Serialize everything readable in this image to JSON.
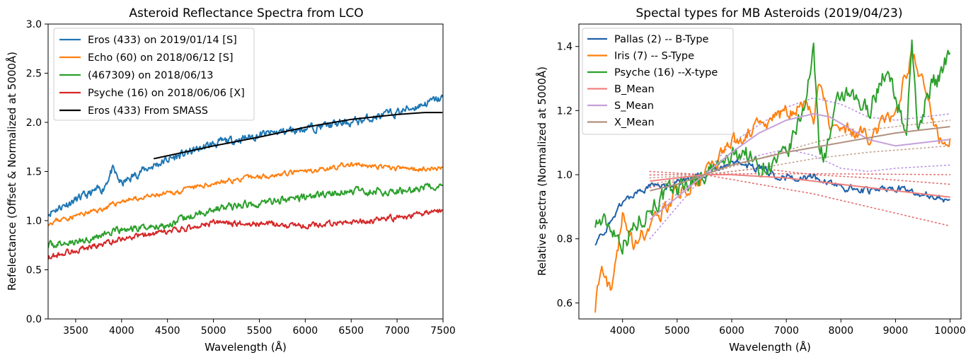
{
  "chart_data": [
    {
      "type": "line",
      "title": "Asteroid Reflectance Spectra from LCO",
      "xlabel": "Wavelength (Å)",
      "ylabel": "Refelectance (Offset & Normalized at 5000Å)",
      "xlim": [
        3200,
        7500
      ],
      "ylim": [
        0.0,
        3.0
      ],
      "xticks": [
        "3500",
        "4000",
        "4500",
        "5000",
        "5500",
        "6000",
        "6500",
        "7000",
        "7500"
      ],
      "yticks": [
        "0.0",
        "0.5",
        "1.0",
        "1.5",
        "2.0",
        "2.5",
        "3.0"
      ],
      "grid": false,
      "legend_position": "top-left",
      "series": [
        {
          "name": "Eros (433) on 2019/01/14 [S]",
          "color": "#1f77b4",
          "noise": 0.035,
          "seed": 11,
          "x": [
            3200,
            3400,
            3600,
            3800,
            3900,
            4000,
            4200,
            4500,
            5000,
            5500,
            6000,
            6500,
            7000,
            7500
          ],
          "y": [
            1.08,
            1.17,
            1.25,
            1.33,
            1.52,
            1.37,
            1.5,
            1.62,
            1.78,
            1.87,
            1.94,
            2.0,
            2.1,
            2.25
          ]
        },
        {
          "name": "Echo (60) on 2018/06/12 [S]",
          "color": "#ff7f0e",
          "noise": 0.02,
          "seed": 23,
          "x": [
            3200,
            3500,
            3800,
            4000,
            4500,
            5000,
            5500,
            6000,
            6500,
            7000,
            7500
          ],
          "y": [
            0.98,
            1.05,
            1.12,
            1.2,
            1.27,
            1.38,
            1.45,
            1.5,
            1.57,
            1.53,
            1.53
          ]
        },
        {
          "name": "(467309) on 2018/06/13",
          "color": "#2ca02c",
          "noise": 0.03,
          "seed": 37,
          "x": [
            3200,
            3500,
            3800,
            4000,
            4500,
            5000,
            5500,
            6000,
            6500,
            7000,
            7500
          ],
          "y": [
            0.75,
            0.78,
            0.86,
            0.9,
            0.96,
            1.12,
            1.18,
            1.24,
            1.3,
            1.3,
            1.35
          ]
        },
        {
          "name": "Psyche (16) on 2018/06/06 [X]",
          "color": "#d62728",
          "noise": 0.025,
          "seed": 53,
          "x": [
            3200,
            3500,
            3800,
            4000,
            4500,
            5000,
            5500,
            6000,
            6500,
            7000,
            7500
          ],
          "y": [
            0.63,
            0.7,
            0.76,
            0.82,
            0.88,
            0.98,
            0.97,
            0.95,
            0.98,
            1.03,
            1.1
          ]
        },
        {
          "name": "Eros (433) From SMASS",
          "color": "#000000",
          "noise": 0,
          "seed": 0,
          "x": [
            4350,
            4500,
            5000,
            5500,
            6000,
            6500,
            7000,
            7300,
            7500
          ],
          "y": [
            1.63,
            1.66,
            1.76,
            1.85,
            1.95,
            2.03,
            2.08,
            2.1,
            2.1
          ]
        }
      ]
    },
    {
      "type": "line",
      "title": "Spectal types for MB Asteroids (2019/04/23)",
      "xlabel": "Wavelength (Å)",
      "ylabel": "Relative spectra (Normalized at 5000Å)",
      "xlim": [
        3200,
        10200
      ],
      "ylim": [
        0.55,
        1.47
      ],
      "xticks": [
        "4000",
        "5000",
        "6000",
        "7000",
        "8000",
        "9000",
        "10000"
      ],
      "yticks": [
        "0.6",
        "0.8",
        "1.0",
        "1.2",
        "1.4"
      ],
      "grid": false,
      "legend_position": "top-left",
      "series": [
        {
          "name": "Pallas (2) -- B-Type",
          "color": "#1f5fa8",
          "noise": 0.01,
          "seed": 71,
          "x": [
            3500,
            3800,
            4000,
            4500,
            5000,
            5500,
            6000,
            6500,
            7000,
            7500,
            8000,
            8500,
            9000,
            9500,
            10000
          ],
          "y": [
            0.79,
            0.85,
            0.92,
            0.96,
            0.97,
            1.0,
            1.04,
            1.02,
            0.99,
            0.99,
            0.96,
            0.95,
            0.96,
            0.94,
            0.92
          ]
        },
        {
          "name": "Iris (7) -- S-Type",
          "color": "#ff7f0e",
          "noise": 0.02,
          "seed": 83,
          "x": [
            3500,
            3600,
            3800,
            4000,
            4200,
            4500,
            5000,
            5500,
            6000,
            6500,
            7000,
            7300,
            7500,
            7600,
            7800,
            8000,
            8500,
            9000,
            9300,
            9500,
            9800,
            10000
          ],
          "y": [
            0.59,
            0.72,
            0.62,
            0.88,
            0.78,
            0.84,
            0.94,
            1.0,
            1.1,
            1.15,
            1.2,
            1.22,
            1.17,
            1.3,
            1.15,
            1.15,
            1.12,
            1.2,
            1.38,
            1.28,
            1.1,
            1.11
          ]
        },
        {
          "name": "Psyche (16) --X-type",
          "color": "#2ca02c",
          "noise": 0.025,
          "seed": 97,
          "x": [
            3500,
            3800,
            4000,
            4500,
            5000,
            5500,
            6000,
            6200,
            6500,
            7000,
            7300,
            7500,
            7600,
            7700,
            8000,
            8500,
            8800,
            9000,
            9200,
            9300,
            9400,
            9600,
            9800,
            10000
          ],
          "y": [
            0.86,
            0.84,
            0.79,
            0.9,
            0.96,
            1.0,
            1.05,
            1.08,
            1.02,
            1.05,
            1.2,
            1.38,
            1.1,
            1.06,
            1.25,
            1.2,
            1.32,
            1.25,
            1.12,
            1.44,
            1.12,
            1.27,
            1.3,
            1.4
          ]
        },
        {
          "name": "B_Mean",
          "color": "#f08080",
          "noise": 0,
          "seed": 0,
          "x": [
            4500,
            5000,
            5500,
            6000,
            7000,
            8000,
            9000,
            10000
          ],
          "y": [
            0.98,
            0.99,
            1.0,
            1.0,
            0.99,
            0.97,
            0.95,
            0.93
          ]
        },
        {
          "name": "S_Mean",
          "color": "#c5a0d8",
          "noise": 0,
          "seed": 0,
          "x": [
            4500,
            5000,
            5500,
            6000,
            6500,
            7000,
            7500,
            7800,
            8000,
            8500,
            9000,
            9500,
            10000
          ],
          "y": [
            0.86,
            0.93,
            1.0,
            1.07,
            1.13,
            1.17,
            1.19,
            1.18,
            1.16,
            1.11,
            1.09,
            1.1,
            1.11
          ]
        },
        {
          "name": "X_Mean",
          "color": "#b09080",
          "noise": 0,
          "seed": 0,
          "x": [
            4500,
            5000,
            5500,
            6000,
            7000,
            8000,
            9000,
            10000
          ],
          "y": [
            0.95,
            0.97,
            1.0,
            1.03,
            1.07,
            1.1,
            1.13,
            1.15
          ]
        }
      ],
      "bands": [
        {
          "color": "#e05050",
          "x": [
            4500,
            5500,
            6500,
            7500,
            8500,
            10000
          ],
          "y": [
            0.999,
            1.002,
            1.003,
            1.003,
            1.002,
            1.0
          ]
        },
        {
          "color": "#e05050",
          "x": [
            4500,
            5500,
            6500,
            7500,
            8500,
            10000
          ],
          "y": [
            0.96,
            1.0,
            0.97,
            0.94,
            0.9,
            0.84
          ]
        },
        {
          "color": "#e05050",
          "x": [
            4500,
            5500,
            6500,
            7500,
            8500,
            10000
          ],
          "y": [
            1.01,
            1.0,
            1.02,
            1.0,
            0.99,
            0.97
          ]
        },
        {
          "color": "#b07fe0",
          "x": [
            4500,
            5000,
            5500,
            6000,
            7000,
            7500,
            8000,
            8500,
            9000,
            10000
          ],
          "y": [
            0.8,
            0.9,
            1.0,
            1.1,
            1.21,
            1.24,
            1.22,
            1.18,
            1.17,
            1.19
          ]
        },
        {
          "color": "#b07fe0",
          "x": [
            4500,
            5000,
            5500,
            6000,
            7000,
            7500,
            8000,
            8500,
            9000,
            10000
          ],
          "y": [
            0.88,
            0.94,
            1.0,
            1.04,
            1.08,
            1.06,
            1.02,
            1.01,
            1.02,
            1.03
          ]
        },
        {
          "color": "#b8907a",
          "x": [
            4500,
            5500,
            6500,
            7500,
            8500,
            10000
          ],
          "y": [
            0.97,
            1.0,
            1.05,
            1.1,
            1.14,
            1.17
          ]
        },
        {
          "color": "#b8907a",
          "x": [
            4500,
            5500,
            6500,
            7500,
            8500,
            10000
          ],
          "y": [
            0.99,
            1.0,
            1.02,
            1.05,
            1.07,
            1.09
          ]
        }
      ]
    }
  ]
}
